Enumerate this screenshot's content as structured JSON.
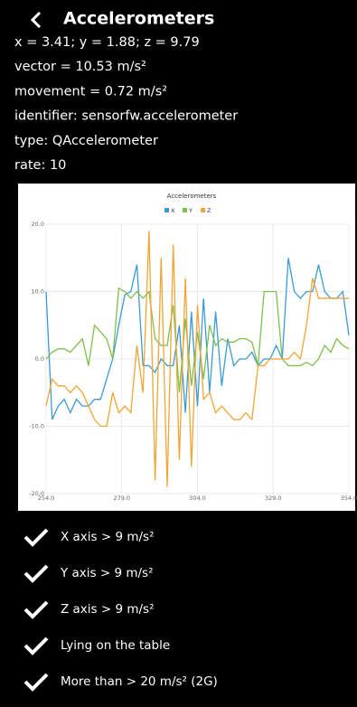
{
  "header": {
    "title": "Accelerometers"
  },
  "info": [
    "x = 3.41; y = 1.88; z = 9.79",
    "vector = 10.53 m/s²",
    "movement = 0.72 m/s²",
    "identifier: sensorfw.accelerometer",
    "type: QAccelerometer",
    "rate: 10"
  ],
  "chart_data": {
    "type": "line",
    "title": "Accelerometers",
    "x": [
      254,
      256,
      258,
      260,
      262,
      264,
      266,
      268,
      270,
      272,
      274,
      276,
      278,
      280,
      282,
      284,
      286,
      288,
      290,
      292,
      294,
      296,
      298,
      300,
      302,
      304,
      306,
      308,
      310,
      312,
      314,
      316,
      318,
      320,
      322,
      324,
      326,
      328,
      330,
      332,
      334,
      336,
      338,
      340,
      342,
      344,
      346,
      348,
      350,
      352,
      354
    ],
    "series": [
      {
        "name": "X",
        "color": "#3b9ad8",
        "values": [
          10,
          -9,
          -7,
          -6,
          -8,
          -6,
          -7,
          -7,
          -6,
          -6,
          -3,
          0,
          5,
          9.5,
          10,
          14,
          -1,
          -1,
          -2,
          0,
          -1,
          -1,
          5,
          -8,
          7,
          -7,
          9,
          -5,
          7,
          -4,
          3,
          -1,
          0,
          0,
          1,
          -1,
          0,
          0,
          2,
          0,
          15,
          10,
          9,
          10,
          10,
          14,
          10,
          9,
          9,
          10,
          3.5
        ]
      },
      {
        "name": "Y",
        "color": "#7dbf4c",
        "values": [
          0,
          1,
          1.5,
          1.5,
          1,
          2,
          3,
          -1,
          5,
          4,
          3,
          0,
          10.5,
          10,
          9,
          10,
          9,
          10,
          3,
          2,
          2,
          8,
          -5,
          6,
          -4,
          4,
          -3,
          5,
          2,
          3,
          2.5,
          2.5,
          3,
          3,
          2.5,
          -1,
          10,
          10,
          10,
          0,
          -1,
          -1,
          -1,
          -0.5,
          -1,
          0,
          2,
          1,
          3,
          2,
          1.5
        ]
      },
      {
        "name": "Z",
        "color": "#f0a535",
        "values": [
          -7,
          -3,
          -4,
          -4,
          -5,
          -4,
          -5,
          -7,
          -9,
          -10,
          -10,
          -5,
          -8,
          -7,
          -8,
          2,
          -5,
          19,
          -18,
          15,
          -19,
          17,
          -15,
          12,
          -16,
          8,
          -6,
          -5,
          -8,
          -7,
          -8,
          -9,
          -9,
          -8,
          -9,
          -1,
          -1,
          0,
          0,
          0,
          0,
          1,
          0,
          5,
          12,
          9,
          9,
          9,
          9,
          9,
          9
        ]
      }
    ],
    "xlim": [
      254,
      354
    ],
    "ylim": [
      -20,
      20
    ],
    "xticks": [
      {
        "value": 254,
        "label": "254.0"
      },
      {
        "value": 279,
        "label": "279.0"
      },
      {
        "value": 304,
        "label": "304.0"
      },
      {
        "value": 329,
        "label": "329.0"
      },
      {
        "value": 354,
        "label": "354.0"
      }
    ],
    "yticks": [
      {
        "value": -20,
        "label": "-20.0"
      },
      {
        "value": -10,
        "label": "-10.0"
      },
      {
        "value": 0,
        "label": "0.0"
      },
      {
        "value": 10,
        "label": "10.0"
      },
      {
        "value": 20,
        "label": "20.0"
      }
    ],
    "grid": true
  },
  "checks": [
    "X axis > 9 m/s²",
    "Y axis > 9 m/s²",
    "Z axis > 9 m/s²",
    "Lying on the table",
    "More than > 20  m/s² (2G)"
  ]
}
